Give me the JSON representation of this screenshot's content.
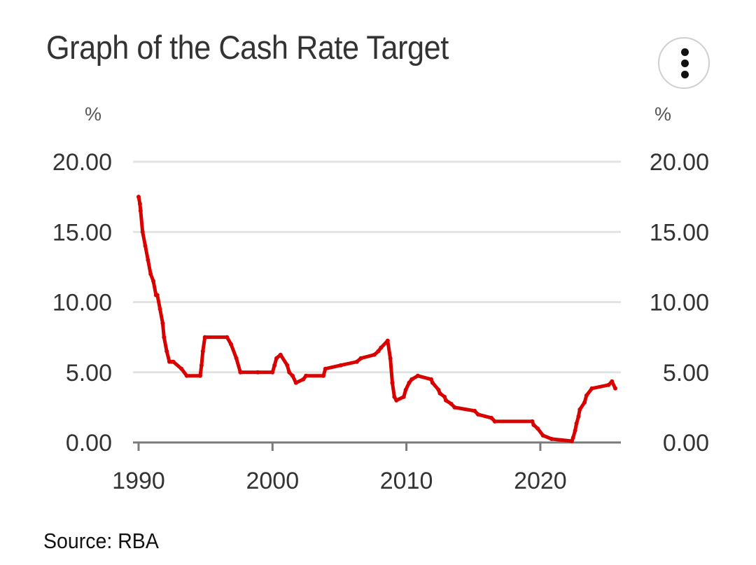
{
  "header": {
    "title": "Graph of the Cash Rate Target",
    "menu_icon": "more-vertical-icon"
  },
  "footer": {
    "source": "Source: RBA"
  },
  "colors": {
    "line": "#d90000",
    "grid": "#e3e3e3",
    "axis": "#7a7a7a",
    "text": "#333333"
  },
  "chart_data": {
    "type": "line",
    "title": "Graph of the Cash Rate Target",
    "xlabel": "",
    "ylabel": "%",
    "ylabel_right": "%",
    "xlim": [
      1989.6,
      2026.0
    ],
    "ylim": [
      0,
      20
    ],
    "yticks": [
      "0.00",
      "5.00",
      "10.00",
      "15.00",
      "20.00"
    ],
    "ytick_values": [
      0,
      5,
      10,
      15,
      20
    ],
    "xticks": [
      "1990",
      "2000",
      "2010",
      "2020"
    ],
    "xtick_values": [
      1990,
      2000,
      2010,
      2020
    ],
    "grid": true,
    "legend": "none",
    "series": [
      {
        "name": "Cash Rate Target",
        "x": [
          1990.0,
          1990.1,
          1990.15,
          1990.3,
          1990.5,
          1990.7,
          1990.9,
          1991.1,
          1991.3,
          1991.4,
          1991.6,
          1991.8,
          1991.9,
          1992.1,
          1992.3,
          1992.5,
          1992.6,
          1993.2,
          1993.6,
          1994.6,
          1994.7,
          1994.8,
          1994.95,
          1996.6,
          1996.9,
          1997.3,
          1997.6,
          1998.9,
          2000.0,
          2000.15,
          2000.3,
          2000.6,
          2001.1,
          2001.25,
          2001.5,
          2001.75,
          2002.3,
          2002.5,
          2003.8,
          2003.95,
          2005.1,
          2006.3,
          2006.6,
          2007.6,
          2007.9,
          2008.1,
          2008.6,
          2008.8,
          2008.95,
          2009.1,
          2009.25,
          2009.8,
          2009.95,
          2010.2,
          2010.4,
          2010.85,
          2011.85,
          2011.95,
          2012.4,
          2012.5,
          2012.85,
          2012.95,
          2013.35,
          2013.6,
          2015.1,
          2015.35,
          2016.35,
          2016.6,
          2019.4,
          2019.5,
          2019.8,
          2020.2,
          2020.85,
          2022.35,
          2022.45,
          2022.6,
          2022.7,
          2022.85,
          2022.95,
          2023.3,
          2023.45,
          2023.85,
          2025.1,
          2025.35,
          2025.6
        ],
        "values": [
          17.5,
          17.0,
          16.5,
          15.0,
          14.0,
          13.0,
          12.0,
          11.5,
          10.5,
          10.5,
          9.5,
          8.5,
          7.5,
          6.5,
          5.75,
          5.75,
          5.75,
          5.25,
          4.75,
          4.75,
          5.5,
          6.5,
          7.5,
          7.5,
          7.0,
          6.0,
          5.0,
          5.0,
          5.0,
          5.5,
          6.0,
          6.25,
          5.5,
          5.0,
          4.75,
          4.25,
          4.5,
          4.75,
          4.75,
          5.25,
          5.5,
          5.75,
          6.0,
          6.25,
          6.5,
          6.75,
          7.25,
          6.0,
          4.25,
          3.25,
          3.0,
          3.25,
          3.75,
          4.25,
          4.5,
          4.75,
          4.5,
          4.25,
          3.75,
          3.5,
          3.25,
          3.0,
          2.75,
          2.5,
          2.25,
          2.0,
          1.75,
          1.5,
          1.5,
          1.25,
          1.0,
          0.5,
          0.25,
          0.1,
          0.35,
          0.85,
          1.35,
          1.85,
          2.35,
          2.85,
          3.35,
          3.85,
          4.1,
          4.35,
          3.85
        ]
      }
    ]
  }
}
